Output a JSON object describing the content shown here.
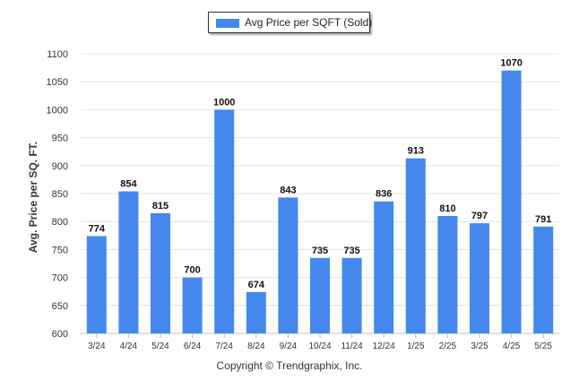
{
  "chart_data": {
    "type": "bar",
    "categories": [
      "3/24",
      "4/24",
      "5/24",
      "6/24",
      "7/24",
      "8/24",
      "9/24",
      "10/24",
      "11/24",
      "12/24",
      "1/25",
      "2/25",
      "3/25",
      "4/25",
      "5/25"
    ],
    "series": [
      {
        "name": "Avg Price per SQFT (Sold)",
        "values": [
          774,
          854,
          815,
          700,
          1000,
          674,
          843,
          735,
          735,
          836,
          913,
          810,
          797,
          1070,
          791
        ]
      }
    ],
    "xlabel": "",
    "ylabel": "Avg. Price per SQ. FT.",
    "ylim": [
      600,
      1100
    ],
    "yticks": [
      600,
      650,
      700,
      750,
      800,
      850,
      900,
      950,
      1000,
      1050,
      1100
    ],
    "grid": true,
    "legend_position": "top-center",
    "bar_color": "#4488ee",
    "credit": "Copyright © Trendgraphix, Inc."
  }
}
